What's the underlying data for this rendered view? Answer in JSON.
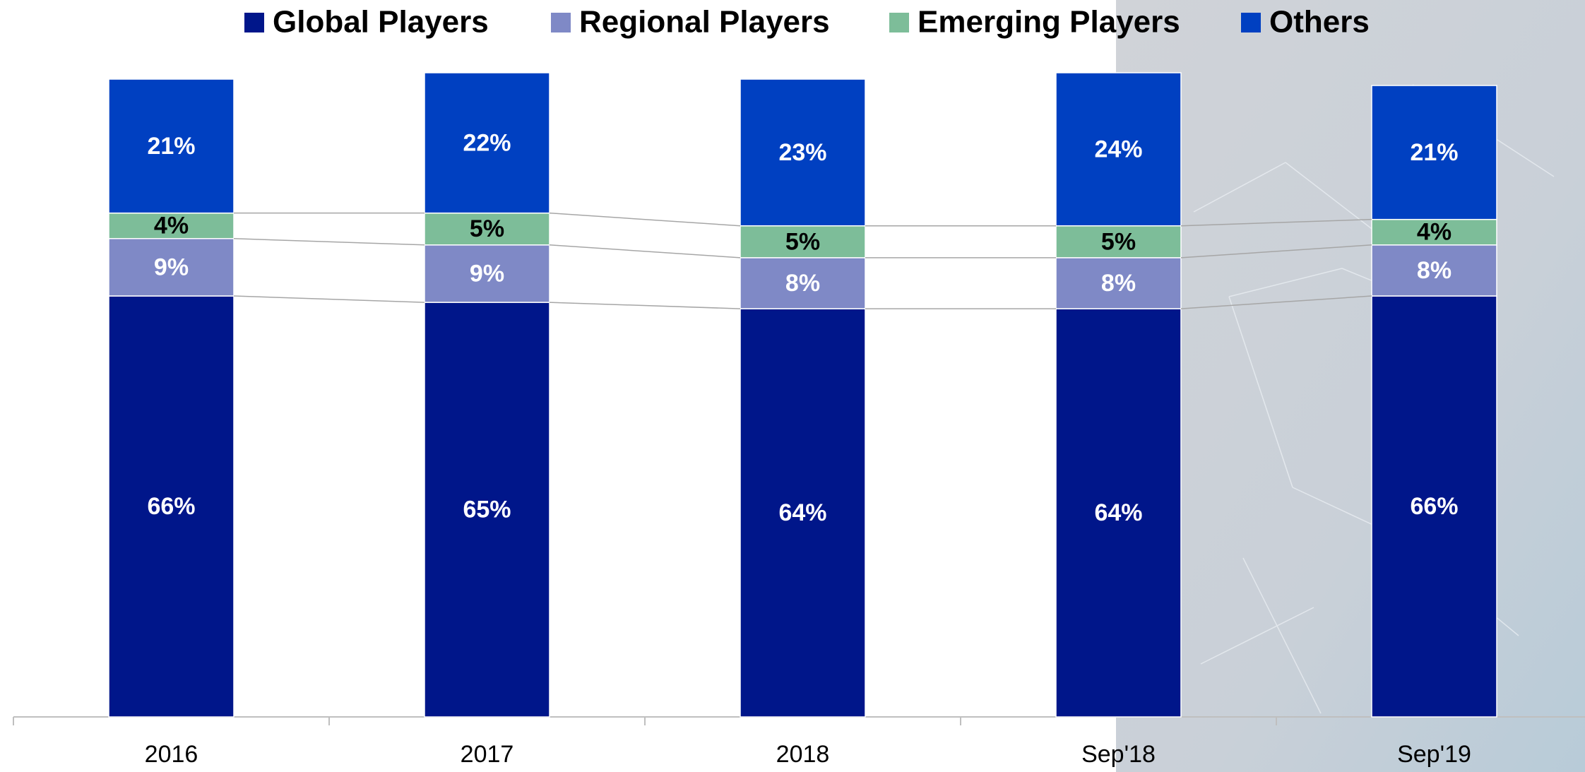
{
  "chart_data": {
    "type": "stacked_bar",
    "categories": [
      "2016",
      "2017",
      "2018",
      "Sep'18",
      "Sep'19"
    ],
    "series": [
      {
        "name": "Global Players",
        "color": "#00168a",
        "values": [
          66,
          65,
          64,
          64,
          66
        ],
        "value_labels": [
          "66%",
          "65%",
          "64%",
          "64%",
          "66%"
        ]
      },
      {
        "name": "Regional Players",
        "color": "#7f89c6",
        "values": [
          9,
          9,
          8,
          8,
          8
        ],
        "value_labels": [
          "9%",
          "9%",
          "8%",
          "8%",
          "8%"
        ]
      },
      {
        "name": "Emerging Players",
        "color": "#7dbd99",
        "values": [
          4,
          5,
          5,
          5,
          4
        ],
        "value_labels": [
          "4%",
          "5%",
          "5%",
          "5%",
          "4%"
        ]
      },
      {
        "name": "Others",
        "color": "#0040c1",
        "values": [
          21,
          22,
          23,
          24,
          21
        ],
        "value_labels": [
          "21%",
          "22%",
          "23%",
          "24%",
          "21%"
        ]
      }
    ],
    "ylim": [
      0,
      101
    ],
    "legend": "top"
  }
}
